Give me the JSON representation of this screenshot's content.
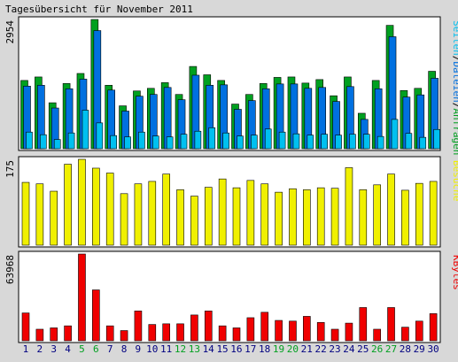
{
  "title": "Tagesübersicht für November 2011",
  "colors": {
    "background": "#d8d8d8",
    "plot_bg": "#ffffff",
    "hits": "#00a020",
    "files": "#0070e0",
    "pages": "#00c0f0",
    "visits": "#f0f000",
    "kbytes": "#f00000",
    "weekday_label": "#000080",
    "weekend_label": "#00a020"
  },
  "chart_data": [
    {
      "type": "bar",
      "panel": "requests",
      "max_label": "2954",
      "legend": {
        "pages": "Seiten",
        "sep1": "/",
        "files": "Dateien",
        "sep2": "/",
        "hits": "Anfragen"
      },
      "categories": [
        "1",
        "2",
        "3",
        "4",
        "5",
        "6",
        "7",
        "8",
        "9",
        "10",
        "11",
        "12",
        "13",
        "14",
        "15",
        "16",
        "17",
        "18",
        "19",
        "20",
        "21",
        "22",
        "23",
        "24",
        "25",
        "26",
        "27",
        "28",
        "29",
        "30"
      ],
      "ylim": [
        0,
        2954
      ],
      "series": [
        {
          "name": "Anfragen",
          "values": [
            1560,
            1640,
            1050,
            1490,
            1720,
            2954,
            1450,
            980,
            1320,
            1380,
            1510,
            1240,
            1880,
            1690,
            1560,
            1020,
            1240,
            1490,
            1630,
            1640,
            1500,
            1580,
            1210,
            1640,
            810,
            1560,
            2820,
            1330,
            1380,
            1770
          ]
        },
        {
          "name": "Dateien",
          "values": [
            1430,
            1450,
            930,
            1370,
            1590,
            2700,
            1340,
            860,
            1200,
            1240,
            1400,
            1120,
            1680,
            1450,
            1460,
            900,
            1100,
            1370,
            1480,
            1480,
            1380,
            1400,
            1080,
            1420,
            670,
            1370,
            2560,
            1180,
            1230,
            1610
          ]
        },
        {
          "name": "Seiten",
          "values": [
            380,
            320,
            210,
            360,
            880,
            590,
            300,
            270,
            380,
            290,
            270,
            330,
            400,
            480,
            360,
            290,
            310,
            450,
            380,
            340,
            310,
            330,
            310,
            330,
            330,
            280,
            670,
            350,
            260,
            440
          ]
        }
      ]
    },
    {
      "type": "bar",
      "panel": "visits",
      "max_label": "175",
      "legend": {
        "visits": "Besuche"
      },
      "categories": [
        "1",
        "2",
        "3",
        "4",
        "5",
        "6",
        "7",
        "8",
        "9",
        "10",
        "11",
        "12",
        "13",
        "14",
        "15",
        "16",
        "17",
        "18",
        "19",
        "20",
        "21",
        "22",
        "23",
        "24",
        "25",
        "26",
        "27",
        "28",
        "29",
        "30"
      ],
      "ylim": [
        0,
        175
      ],
      "series": [
        {
          "name": "Besuche",
          "values": [
            128,
            125,
            110,
            165,
            175,
            157,
            147,
            105,
            125,
            130,
            145,
            113,
            100,
            118,
            135,
            117,
            132,
            125,
            108,
            115,
            113,
            117,
            116,
            158,
            113,
            123,
            145,
            112,
            126,
            130
          ]
        }
      ]
    },
    {
      "type": "bar",
      "panel": "kbytes",
      "max_label": "63968",
      "legend": {
        "kbytes": "KBytes"
      },
      "categories": [
        "1",
        "2",
        "3",
        "4",
        "5",
        "6",
        "7",
        "8",
        "9",
        "10",
        "11",
        "12",
        "13",
        "14",
        "15",
        "16",
        "17",
        "18",
        "19",
        "20",
        "21",
        "22",
        "23",
        "24",
        "25",
        "26",
        "27",
        "28",
        "29",
        "30"
      ],
      "ylim": [
        0,
        63968
      ],
      "series": [
        {
          "name": "KBytes",
          "values": [
            20500,
            8500,
            9500,
            11000,
            63968,
            37500,
            11000,
            7500,
            22000,
            12000,
            12500,
            12500,
            19000,
            22000,
            11000,
            9500,
            17000,
            21000,
            15000,
            14500,
            18000,
            13500,
            8500,
            13000,
            24500,
            8500,
            24500,
            10000,
            14500,
            20000
          ]
        }
      ]
    }
  ],
  "weekend_days": [
    "5",
    "6",
    "12",
    "13",
    "19",
    "20",
    "26",
    "27"
  ]
}
